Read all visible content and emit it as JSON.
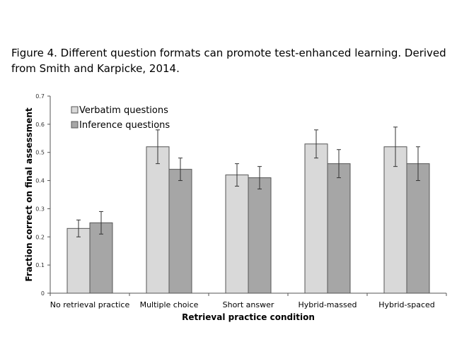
{
  "caption": "Figure 4. Different question formats can promote test-enhanced learning. Derived from Smith and Karpicke, 2014.",
  "chart_data": {
    "type": "bar",
    "xlabel": "Retrieval practice condition",
    "ylabel": "Fraction correct on final assessment",
    "ylim": [
      0,
      0.7
    ],
    "yticks": [
      "0",
      "0.1",
      "0.2",
      "0.3",
      "0.4",
      "0.5",
      "0.6",
      "0.7"
    ],
    "categories": [
      "No retrieval practice",
      "Multiple choice",
      "Short answer",
      "Hybrid-massed",
      "Hybrid-spaced"
    ],
    "legend_placement": "top-left",
    "grid": false,
    "series": [
      {
        "name": "Verbatim questions",
        "color": "#d9d9d9",
        "values": [
          0.23,
          0.52,
          0.42,
          0.53,
          0.52
        ],
        "error_low": [
          0.2,
          0.46,
          0.38,
          0.48,
          0.45
        ],
        "error_high": [
          0.26,
          0.58,
          0.46,
          0.58,
          0.59
        ]
      },
      {
        "name": "Inference questions",
        "color": "#a6a6a6",
        "values": [
          0.25,
          0.44,
          0.41,
          0.46,
          0.46
        ],
        "error_low": [
          0.21,
          0.4,
          0.37,
          0.41,
          0.4
        ],
        "error_high": [
          0.29,
          0.48,
          0.45,
          0.51,
          0.52
        ]
      }
    ]
  }
}
